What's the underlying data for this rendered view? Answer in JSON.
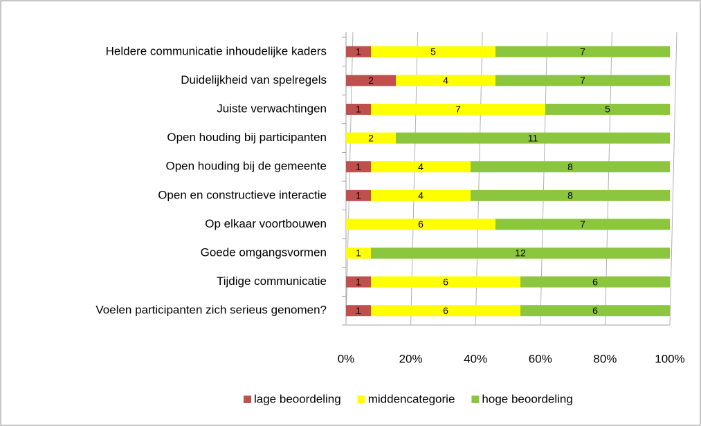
{
  "chart_data": {
    "type": "bar",
    "orientation": "horizontal",
    "stacking": "percent",
    "categories": [
      "Heldere communicatie inhoudelijke kaders",
      "Duidelijkheid van spelregels",
      "Juiste verwachtingen",
      "Open houding bij participanten",
      "Open houding bij de gemeente",
      "Open en constructieve interactie",
      "Op elkaar voortbouwen",
      "Goede omgangsvormen",
      "Tijdige communicatie",
      "Voelen participanten zich serieus genomen?"
    ],
    "series": [
      {
        "name": "lage beoordeling",
        "color": "#c0504d",
        "values": [
          1,
          2,
          1,
          0,
          1,
          1,
          0,
          0,
          1,
          1
        ]
      },
      {
        "name": "middencategorie",
        "color": "#ffff00",
        "values": [
          5,
          4,
          7,
          2,
          4,
          4,
          6,
          1,
          6,
          6
        ]
      },
      {
        "name": "hoge beoordeling",
        "color": "#8cc63f",
        "values": [
          7,
          7,
          5,
          11,
          8,
          8,
          7,
          12,
          6,
          6
        ]
      }
    ],
    "xlim": [
      0,
      100
    ],
    "xticks": [
      {
        "value": 0,
        "label": "0%"
      },
      {
        "value": 20,
        "label": "20%"
      },
      {
        "value": 40,
        "label": "40%"
      },
      {
        "value": 60,
        "label": "60%"
      },
      {
        "value": 80,
        "label": "80%"
      },
      {
        "value": 100,
        "label": "100%"
      }
    ],
    "grid": true,
    "legend": "bottom"
  }
}
